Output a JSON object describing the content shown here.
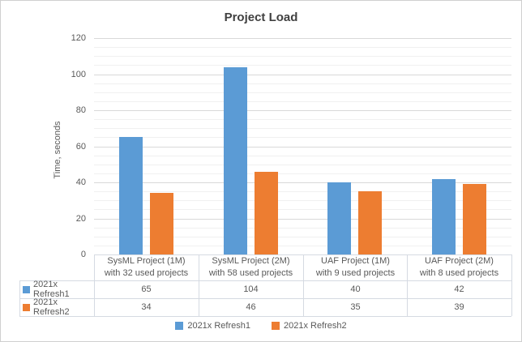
{
  "chart_data": {
    "type": "bar",
    "title": "Project Load",
    "xlabel": "",
    "ylabel": "Time, seconds",
    "ylim": [
      0,
      120
    ],
    "y_major_ticks": [
      0,
      20,
      40,
      60,
      80,
      100,
      120
    ],
    "y_minor_unit": 5,
    "grid": true,
    "legend_position": "bottom",
    "data_table_shown": true,
    "categories": [
      "SysML Project (1M) with 32 used projects",
      "SysML Project (2M) with 58 used projects",
      "UAF Project (1M) with 9 used projects",
      "UAF Project (2M) with 8 used projects"
    ],
    "categories_wrapped": [
      [
        "SysML Project (1M)",
        "with 32 used projects"
      ],
      [
        "SysML Project (2M)",
        "with 58 used projects"
      ],
      [
        "UAF Project (1M)",
        "with 9 used projects"
      ],
      [
        "UAF Project (2M)",
        "with 8 used projects"
      ]
    ],
    "series": [
      {
        "name": "2021x Refresh1",
        "color": "#5B9BD5",
        "values": [
          65,
          104,
          40,
          42
        ]
      },
      {
        "name": "2021x Refresh2",
        "color": "#ED7D31",
        "values": [
          34,
          46,
          35,
          39
        ]
      }
    ]
  },
  "colors": {
    "title_text": "#404040",
    "axis_text": "#595959",
    "major_gridline": "#d9d9d9",
    "minor_gridline": "#f0f0f0",
    "table_border": "#d5dae2",
    "chart_border": "#d0d0d0",
    "background": "#ffffff"
  }
}
